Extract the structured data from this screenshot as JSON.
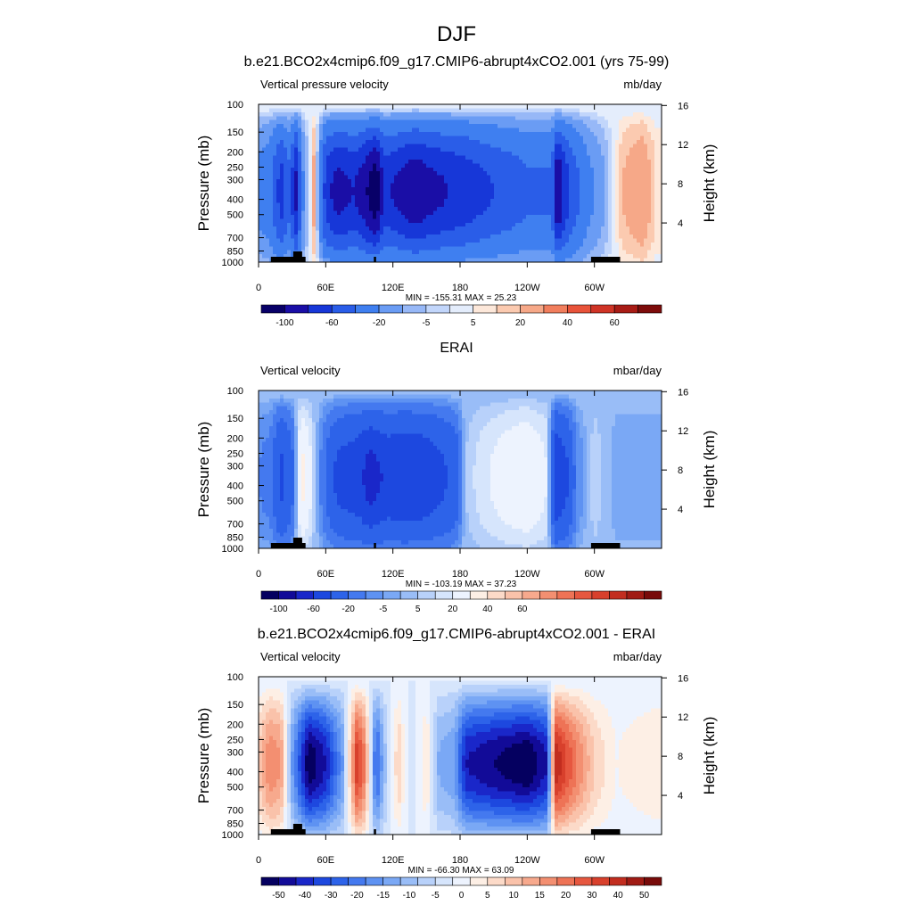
{
  "title": "DJF",
  "chart_data": [
    {
      "type": "heatmap",
      "title": "b.e21.BCO2x4cmip6.f09_g17.CMIP6-abrupt4xCO2.001 (yrs 75-99)",
      "left_label": "Vertical pressure velocity",
      "units": "mb/day",
      "ylabel": "Pressure (mb)",
      "ylabel_right": "Height (km)",
      "stats": "MIN = -155.31  MAX =  25.23",
      "x_ticks": [
        "0",
        "60E",
        "120E",
        "180",
        "120W",
        "60W"
      ],
      "y_ticks": [
        "100",
        "150",
        "200",
        "250",
        "300",
        "400",
        "500",
        "700",
        "850",
        "1000"
      ],
      "y_right_ticks": [
        "4",
        "8",
        "12",
        "16"
      ],
      "ylim": [
        1000,
        100
      ],
      "colorbar_labels": [
        "-100",
        "-60",
        "-20",
        "-5",
        "5",
        "20",
        "40",
        "60"
      ],
      "colorbar_levels": [
        -120,
        -100,
        -80,
        -60,
        -40,
        -20,
        -10,
        -5,
        -2,
        2,
        5,
        10,
        20,
        30,
        40,
        50,
        60
      ],
      "lon_profile": [
        [
          0,
          -25
        ],
        [
          10,
          -35
        ],
        [
          20,
          -70
        ],
        [
          28,
          -45
        ],
        [
          33,
          -90
        ],
        [
          40,
          -20
        ],
        [
          50,
          15
        ],
        [
          60,
          -70
        ],
        [
          70,
          -90
        ],
        [
          85,
          -80
        ],
        [
          95,
          -95
        ],
        [
          105,
          -120
        ],
        [
          112,
          -75
        ],
        [
          125,
          -85
        ],
        [
          140,
          -100
        ],
        [
          150,
          -90
        ],
        [
          170,
          -80
        ],
        [
          185,
          -75
        ],
        [
          200,
          -65
        ],
        [
          220,
          -55
        ],
        [
          240,
          -45
        ],
        [
          262,
          -45
        ],
        [
          267,
          -110
        ],
        [
          272,
          -80
        ],
        [
          282,
          -50
        ],
        [
          295,
          -25
        ],
        [
          310,
          -10
        ],
        [
          325,
          10
        ],
        [
          342,
          20
        ],
        [
          355,
          5
        ]
      ],
      "min": -155.31,
      "max": 25.23
    },
    {
      "type": "heatmap",
      "title": "ERAI",
      "left_label": "Vertical velocity",
      "units": "mbar/day",
      "ylabel": "Pressure (mb)",
      "ylabel_right": "Height (km)",
      "stats": "MIN = -103.19  MAX =  37.23",
      "x_ticks": [
        "0",
        "60E",
        "120E",
        "180",
        "120W",
        "60W"
      ],
      "y_ticks": [
        "100",
        "150",
        "200",
        "250",
        "300",
        "400",
        "500",
        "700",
        "850",
        "1000"
      ],
      "y_right_ticks": [
        "4",
        "8",
        "12",
        "16"
      ],
      "ylim": [
        1000,
        100
      ],
      "colorbar_labels": [
        "-100",
        "-60",
        "-20",
        "-5",
        "5",
        "20",
        "40",
        "60"
      ],
      "colorbar_levels": [
        -120,
        -100,
        -80,
        -60,
        -40,
        -20,
        -10,
        -5,
        -2,
        2,
        5,
        10,
        20,
        30,
        40,
        50,
        60
      ],
      "lon_profile": [
        [
          0,
          -10
        ],
        [
          10,
          -15
        ],
        [
          20,
          -45
        ],
        [
          30,
          -25
        ],
        [
          38,
          25
        ],
        [
          45,
          15
        ],
        [
          55,
          -10
        ],
        [
          70,
          -45
        ],
        [
          90,
          -55
        ],
        [
          100,
          -70
        ],
        [
          115,
          -55
        ],
        [
          130,
          -60
        ],
        [
          150,
          -55
        ],
        [
          175,
          -35
        ],
        [
          185,
          2
        ],
        [
          200,
          8
        ],
        [
          220,
          15
        ],
        [
          240,
          20
        ],
        [
          258,
          10
        ],
        [
          266,
          -60
        ],
        [
          275,
          -45
        ],
        [
          285,
          -10
        ],
        [
          300,
          5
        ],
        [
          320,
          -5
        ],
        [
          355,
          -5
        ]
      ],
      "min": -103.19,
      "max": 37.23
    },
    {
      "type": "heatmap",
      "title": "b.e21.BCO2x4cmip6.f09_g17.CMIP6-abrupt4xCO2.001 - ERAI",
      "left_label": "Vertical velocity",
      "units": "mbar/day",
      "ylabel": "Pressure (mb)",
      "ylabel_right": "Height (km)",
      "stats": "MIN = -66.30  MAX =  63.09",
      "x_ticks": [
        "0",
        "60E",
        "120E",
        "180",
        "120W",
        "60W"
      ],
      "y_ticks": [
        "100",
        "150",
        "200",
        "250",
        "300",
        "400",
        "500",
        "700",
        "850",
        "1000"
      ],
      "y_right_ticks": [
        "4",
        "8",
        "12",
        "16"
      ],
      "ylim": [
        1000,
        100
      ],
      "colorbar_labels": [
        "-50",
        "-40",
        "-30",
        "-20",
        "-15",
        "-10",
        "-5",
        "0",
        "5",
        "10",
        "15",
        "20",
        "30",
        "40",
        "50"
      ],
      "colorbar_levels": [
        -55,
        -50,
        -45,
        -40,
        -35,
        -30,
        -25,
        -20,
        -15,
        -10,
        -5,
        0,
        5,
        10,
        15,
        20,
        25,
        30,
        35,
        40,
        45,
        50,
        55
      ],
      "lon_profile": [
        [
          0,
          15
        ],
        [
          10,
          30
        ],
        [
          20,
          25
        ],
        [
          30,
          -20
        ],
        [
          45,
          -55
        ],
        [
          60,
          -45
        ],
        [
          75,
          -20
        ],
        [
          88,
          45
        ],
        [
          95,
          30
        ],
        [
          105,
          -35
        ],
        [
          115,
          -5
        ],
        [
          125,
          15
        ],
        [
          135,
          -5
        ],
        [
          150,
          10
        ],
        [
          160,
          -15
        ],
        [
          175,
          -20
        ],
        [
          185,
          -45
        ],
        [
          210,
          -50
        ],
        [
          240,
          -55
        ],
        [
          258,
          -45
        ],
        [
          265,
          50
        ],
        [
          275,
          40
        ],
        [
          285,
          30
        ],
        [
          300,
          15
        ],
        [
          320,
          5
        ],
        [
          355,
          10
        ]
      ],
      "min": -66.3,
      "max": 63.09
    }
  ]
}
